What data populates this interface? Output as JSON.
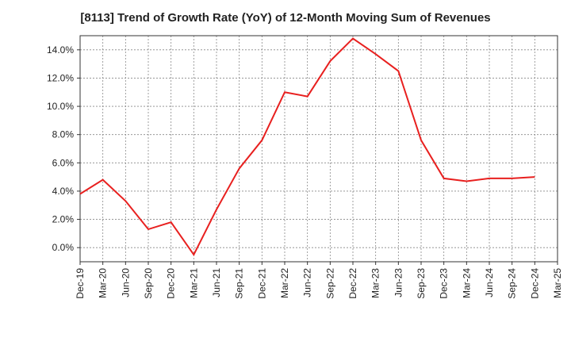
{
  "chart_data": {
    "type": "line",
    "title": "[8113]  Trend of Growth Rate (YoY) of 12-Month Moving Sum of Revenues",
    "xlabel": "",
    "ylabel": "",
    "categories": [
      "Dec-19",
      "Mar-20",
      "Jun-20",
      "Sep-20",
      "Dec-20",
      "Mar-21",
      "Jun-21",
      "Sep-21",
      "Dec-21",
      "Mar-22",
      "Jun-22",
      "Sep-22",
      "Dec-22",
      "Mar-23",
      "Jun-23",
      "Sep-23",
      "Dec-23",
      "Mar-24",
      "Jun-24",
      "Sep-24",
      "Dec-24",
      "Mar-25"
    ],
    "ylim": [
      -1.0,
      15.0
    ],
    "yticks": [
      0,
      2,
      4,
      6,
      8,
      10,
      12,
      14
    ],
    "ytick_labels": [
      "0.0%",
      "2.0%",
      "4.0%",
      "6.0%",
      "8.0%",
      "10.0%",
      "12.0%",
      "14.0%"
    ],
    "grid": true,
    "legend": "none",
    "series": [
      {
        "color": "#e8201f",
        "values": [
          3.8,
          4.8,
          3.3,
          1.3,
          1.8,
          -0.5,
          2.7,
          5.6,
          7.6,
          11.0,
          10.7,
          13.2,
          14.8,
          13.7,
          12.5,
          7.6,
          4.9,
          4.7,
          4.9,
          4.9,
          5.0,
          null
        ]
      }
    ]
  }
}
